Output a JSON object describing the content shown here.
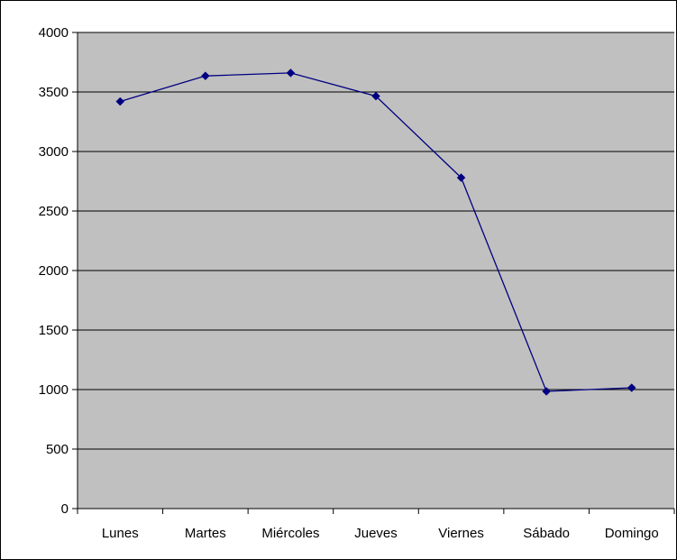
{
  "chart_data": {
    "type": "line",
    "title": "",
    "xlabel": "",
    "ylabel": "",
    "categories": [
      "Lunes",
      "Martes",
      "Miércoles",
      "Jueves",
      "Viernes",
      "Sábado",
      "Domingo"
    ],
    "series": [
      {
        "values": [
          3420,
          3635,
          3660,
          3465,
          2780,
          985,
          1015
        ]
      }
    ],
    "ylim": [
      0,
      4000
    ],
    "yticks": [
      "0",
      "500",
      "1000",
      "1500",
      "2000",
      "2500",
      "3000",
      "3500",
      "4000"
    ],
    "grid": "horizontal",
    "legend": "none",
    "colors": {
      "plot_background": "#c0c0c0",
      "line": "#000080",
      "marker": "#000080",
      "gridline": "#000000"
    }
  }
}
